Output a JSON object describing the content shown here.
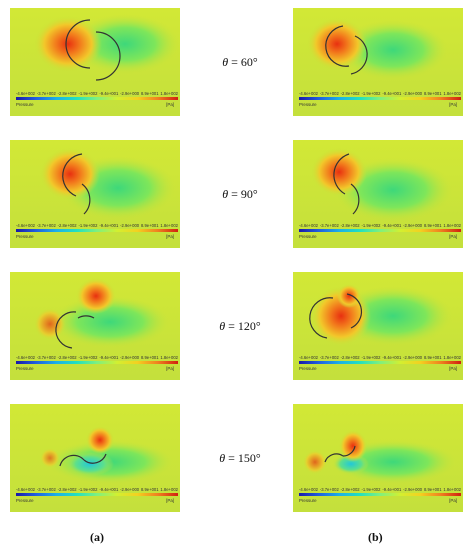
{
  "panels": [
    {
      "id": "a-60",
      "column": "a",
      "angle": "60"
    },
    {
      "id": "b-60",
      "column": "b",
      "angle": "60"
    },
    {
      "id": "a-90",
      "column": "a",
      "angle": "90"
    },
    {
      "id": "b-90",
      "column": "b",
      "angle": "90"
    },
    {
      "id": "a-120",
      "column": "a",
      "angle": "120"
    },
    {
      "id": "b-120",
      "column": "b",
      "angle": "120"
    },
    {
      "id": "a-150",
      "column": "a",
      "angle": "150"
    },
    {
      "id": "b-150",
      "column": "b",
      "angle": "150"
    }
  ],
  "colorbar": {
    "ticks": [
      "-4.6e+002",
      "-3.7e+002",
      "-2.8e+002",
      "-1.9e+002",
      "-9.4e+001",
      "-2.9e+000",
      "8.9e+001",
      "1.8e+002"
    ],
    "label": "Pressure",
    "unit": "[Pa]",
    "colors": [
      "#1a1aa8",
      "#2060e0",
      "#1cb0e8",
      "#22e0c0",
      "#7ef080",
      "#d2f030",
      "#f4d020",
      "#f08020",
      "#d02010"
    ]
  },
  "angle_labels": [
    {
      "symbol": "θ",
      "value": "= 60°"
    },
    {
      "symbol": "θ",
      "value": "= 90°"
    },
    {
      "symbol": "θ",
      "value": "= 120°"
    },
    {
      "symbol": "θ",
      "value": "= 150°"
    }
  ],
  "column_labels": {
    "a": "(a)",
    "b": "(b)"
  }
}
